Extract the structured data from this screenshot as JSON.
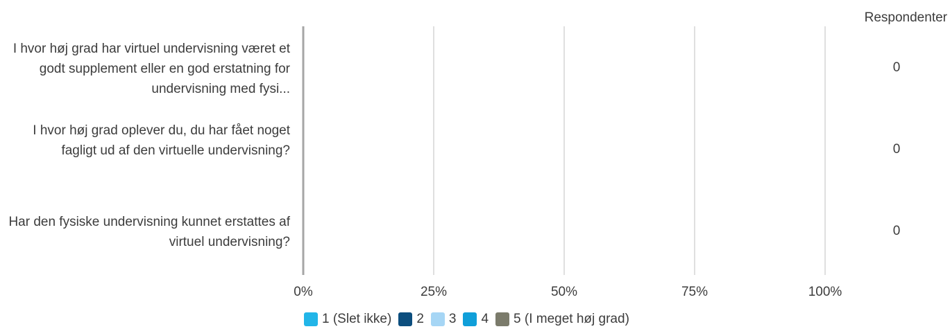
{
  "chart_data": {
    "type": "bar",
    "orientation": "horizontal",
    "stacked": "percent",
    "categories": [
      "I hvor høj grad har virtuel undervisning været et godt supplement eller en god erstatning for undervisning med fysi...",
      "I hvor høj grad oplever du, du har fået noget fagligt ud af den virtuelle undervisning?",
      "Har den fysiske undervisning kunnet erstattes af virtuel undervisning?"
    ],
    "series": [
      {
        "name": "1 (Slet ikke)",
        "color": "#22b5e8",
        "values": [
          0,
          0,
          0
        ]
      },
      {
        "name": "2",
        "color": "#0c4e7e",
        "values": [
          0,
          0,
          0
        ]
      },
      {
        "name": "3",
        "color": "#a6d6f5",
        "values": [
          0,
          0,
          0
        ]
      },
      {
        "name": "4",
        "color": "#109fd9",
        "values": [
          0,
          0,
          0
        ]
      },
      {
        "name": "5 (I meget høj grad)",
        "color": "#7b7b6b",
        "values": [
          0,
          0,
          0
        ]
      }
    ],
    "xlim": [
      0,
      100
    ],
    "xticks": [
      "0%",
      "25%",
      "50%",
      "75%",
      "100%"
    ],
    "grid": true,
    "legend_position": "bottom",
    "respondents_header": "Respondenter",
    "respondents": [
      "0",
      "0",
      "0"
    ]
  }
}
